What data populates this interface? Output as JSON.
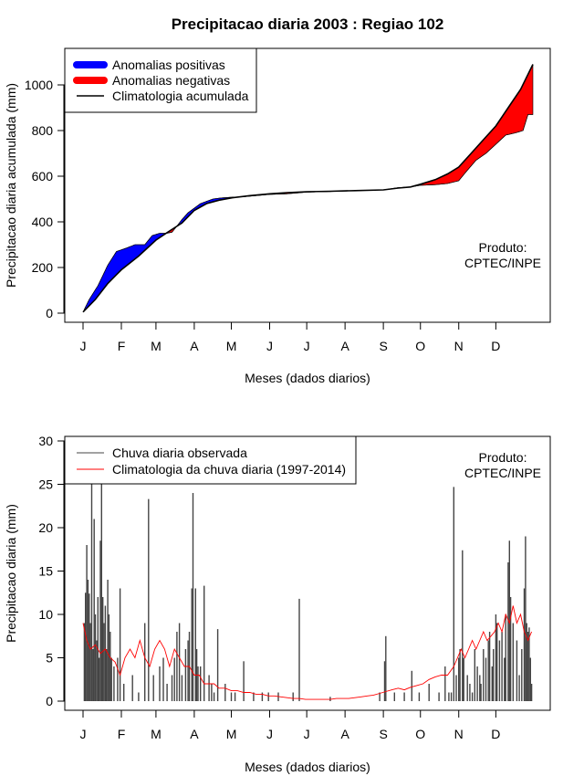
{
  "title": "Precipitacao diaria 2003 : Regiao 102",
  "chart_data": [
    {
      "type": "area",
      "name": "accumulated",
      "title": "Precipitacao diaria 2003 : Regiao 102",
      "xlabel": "Meses (dados diarios)",
      "ylabel": "Precipitacao diaria acumulada (mm)",
      "month_ticks": [
        "J",
        "F",
        "M",
        "A",
        "M",
        "J",
        "J",
        "A",
        "S",
        "O",
        "N",
        "D"
      ],
      "month_start_days": [
        0,
        31,
        59,
        90,
        120,
        151,
        181,
        212,
        243,
        273,
        304,
        334
      ],
      "yticks": [
        0,
        200,
        400,
        600,
        800,
        1000
      ],
      "ylim": [
        0,
        1100
      ],
      "xlim": [
        0,
        364
      ],
      "legend": [
        "Anomalias positivas",
        "Anomalias negativas",
        "Climatologia acumulada"
      ],
      "colors": {
        "positive": "#0000ff",
        "negative": "#ff0000",
        "climatology": "#000000"
      },
      "annotation": [
        "Produto:",
        "CPTEC/INPE"
      ],
      "observed_cumulative": [
        [
          0,
          5
        ],
        [
          5,
          60
        ],
        [
          12,
          120
        ],
        [
          20,
          210
        ],
        [
          27,
          270
        ],
        [
          35,
          285
        ],
        [
          42,
          300
        ],
        [
          50,
          300
        ],
        [
          56,
          340
        ],
        [
          62,
          350
        ],
        [
          68,
          350
        ],
        [
          72,
          355
        ],
        [
          75,
          375
        ],
        [
          80,
          410
        ],
        [
          85,
          440
        ],
        [
          90,
          460
        ],
        [
          95,
          480
        ],
        [
          100,
          490
        ],
        [
          105,
          500
        ],
        [
          112,
          505
        ],
        [
          120,
          508
        ],
        [
          130,
          510
        ],
        [
          140,
          515
        ],
        [
          151,
          520
        ],
        [
          165,
          523
        ],
        [
          181,
          530
        ],
        [
          200,
          533
        ],
        [
          220,
          536
        ],
        [
          243,
          540
        ],
        [
          255,
          550
        ],
        [
          265,
          553
        ],
        [
          273,
          560
        ],
        [
          285,
          563
        ],
        [
          295,
          568
        ],
        [
          304,
          580
        ],
        [
          310,
          620
        ],
        [
          318,
          670
        ],
        [
          326,
          700
        ],
        [
          334,
          740
        ],
        [
          342,
          780
        ],
        [
          350,
          790
        ],
        [
          356,
          800
        ],
        [
          360,
          870
        ],
        [
          364,
          870
        ]
      ],
      "climatology_cumulative": [
        [
          0,
          5
        ],
        [
          10,
          60
        ],
        [
          20,
          130
        ],
        [
          31,
          190
        ],
        [
          45,
          250
        ],
        [
          59,
          320
        ],
        [
          70,
          360
        ],
        [
          80,
          395
        ],
        [
          90,
          450
        ],
        [
          100,
          480
        ],
        [
          110,
          495
        ],
        [
          120,
          505
        ],
        [
          135,
          515
        ],
        [
          151,
          523
        ],
        [
          165,
          528
        ],
        [
          181,
          532
        ],
        [
          200,
          534
        ],
        [
          220,
          537
        ],
        [
          243,
          540
        ],
        [
          255,
          548
        ],
        [
          265,
          553
        ],
        [
          273,
          565
        ],
        [
          285,
          585
        ],
        [
          295,
          610
        ],
        [
          304,
          640
        ],
        [
          314,
          700
        ],
        [
          324,
          760
        ],
        [
          334,
          820
        ],
        [
          344,
          900
        ],
        [
          354,
          980
        ],
        [
          364,
          1090
        ]
      ]
    },
    {
      "type": "bar",
      "name": "daily",
      "xlabel": "Meses (dados diarios)",
      "ylabel": "Precipitacao diaria (mm)",
      "month_ticks": [
        "J",
        "F",
        "M",
        "A",
        "M",
        "J",
        "J",
        "A",
        "S",
        "O",
        "N",
        "D"
      ],
      "month_start_days": [
        0,
        31,
        59,
        90,
        120,
        151,
        181,
        212,
        243,
        273,
        304,
        334
      ],
      "yticks": [
        0,
        5,
        10,
        15,
        20,
        25,
        30
      ],
      "ylim": [
        0,
        30
      ],
      "xlim": [
        0,
        364
      ],
      "legend": [
        "Chuva diaria observada",
        "Climatologia da chuva diaria (1997-2014)"
      ],
      "colors": {
        "observed": "#444444",
        "climatology": "#ff0000"
      },
      "annotation": [
        "Produto:",
        "CPTEC/INPE"
      ],
      "observed_bars": [
        [
          1,
          9
        ],
        [
          2,
          12.5
        ],
        [
          3,
          18
        ],
        [
          4,
          14
        ],
        [
          5,
          12.4
        ],
        [
          6,
          9
        ],
        [
          7,
          25
        ],
        [
          8,
          6
        ],
        [
          9,
          21
        ],
        [
          10,
          10
        ],
        [
          11,
          7
        ],
        [
          12,
          12
        ],
        [
          13,
          5
        ],
        [
          14,
          18.5
        ],
        [
          15,
          25
        ],
        [
          16,
          12
        ],
        [
          17,
          9
        ],
        [
          18,
          11
        ],
        [
          19,
          6
        ],
        [
          20,
          14
        ],
        [
          21,
          10
        ],
        [
          22,
          8
        ],
        [
          23,
          5
        ],
        [
          25,
          4
        ],
        [
          28,
          5
        ],
        [
          30,
          13
        ],
        [
          33,
          2
        ],
        [
          40,
          3
        ],
        [
          45,
          1
        ],
        [
          50,
          9
        ],
        [
          53,
          23.3
        ],
        [
          57,
          3
        ],
        [
          62,
          4
        ],
        [
          65,
          5
        ],
        [
          68,
          2
        ],
        [
          72,
          3
        ],
        [
          74,
          5
        ],
        [
          76,
          8
        ],
        [
          78,
          9
        ],
        [
          80,
          3
        ],
        [
          83,
          6
        ],
        [
          85,
          7
        ],
        [
          86,
          8
        ],
        [
          88,
          13
        ],
        [
          89,
          24
        ],
        [
          91,
          13
        ],
        [
          92,
          6
        ],
        [
          93,
          4
        ],
        [
          95,
          4
        ],
        [
          98,
          13.3
        ],
        [
          102,
          3
        ],
        [
          104,
          2
        ],
        [
          106,
          1
        ],
        [
          109,
          8.3
        ],
        [
          115,
          2
        ],
        [
          120,
          1
        ],
        [
          123,
          1
        ],
        [
          130,
          4.6
        ],
        [
          138,
          1
        ],
        [
          145,
          1
        ],
        [
          150,
          1
        ],
        [
          158,
          1
        ],
        [
          170,
          1
        ],
        [
          175,
          11.8
        ],
        [
          200,
          0.5
        ],
        [
          240,
          1
        ],
        [
          244,
          4.6
        ],
        [
          245,
          7.5
        ],
        [
          252,
          1
        ],
        [
          260,
          1
        ],
        [
          266,
          3.5
        ],
        [
          272,
          1
        ],
        [
          280,
          2
        ],
        [
          288,
          1
        ],
        [
          293,
          4
        ],
        [
          296,
          1
        ],
        [
          298,
          1
        ],
        [
          300,
          24.7
        ],
        [
          302,
          3
        ],
        [
          304,
          5
        ],
        [
          305,
          6
        ],
        [
          307,
          17.4
        ],
        [
          308,
          5
        ],
        [
          311,
          3
        ],
        [
          313,
          2
        ],
        [
          315,
          1
        ],
        [
          317,
          6
        ],
        [
          319,
          4
        ],
        [
          321,
          3
        ],
        [
          322,
          2
        ],
        [
          324,
          6
        ],
        [
          326,
          5
        ],
        [
          328,
          7
        ],
        [
          329,
          8
        ],
        [
          331,
          4
        ],
        [
          332,
          6
        ],
        [
          334,
          10
        ],
        [
          335,
          9
        ],
        [
          337,
          7
        ],
        [
          339,
          8
        ],
        [
          341,
          5
        ],
        [
          342,
          10
        ],
        [
          344,
          16
        ],
        [
          345,
          18.5
        ],
        [
          346,
          12
        ],
        [
          348,
          9
        ],
        [
          351,
          7
        ],
        [
          353,
          3
        ],
        [
          355,
          6
        ],
        [
          357,
          13
        ],
        [
          358,
          19
        ],
        [
          359,
          9
        ],
        [
          360,
          8
        ],
        [
          361,
          8.5
        ],
        [
          362,
          5
        ],
        [
          363,
          2
        ]
      ],
      "climatology_line": [
        [
          0,
          9
        ],
        [
          3,
          7
        ],
        [
          6,
          6
        ],
        [
          10,
          6.5
        ],
        [
          14,
          5.5
        ],
        [
          18,
          6
        ],
        [
          22,
          5
        ],
        [
          26,
          4.5
        ],
        [
          30,
          3
        ],
        [
          34,
          5
        ],
        [
          38,
          6
        ],
        [
          42,
          5
        ],
        [
          46,
          7
        ],
        [
          50,
          5
        ],
        [
          54,
          4
        ],
        [
          58,
          6
        ],
        [
          62,
          7
        ],
        [
          66,
          6
        ],
        [
          70,
          4
        ],
        [
          74,
          6
        ],
        [
          78,
          5
        ],
        [
          82,
          4
        ],
        [
          86,
          4
        ],
        [
          90,
          3
        ],
        [
          94,
          3
        ],
        [
          98,
          2
        ],
        [
          102,
          2
        ],
        [
          106,
          2
        ],
        [
          110,
          1.5
        ],
        [
          115,
          1.5
        ],
        [
          120,
          1.2
        ],
        [
          125,
          1.2
        ],
        [
          130,
          1
        ],
        [
          135,
          1
        ],
        [
          140,
          0.8
        ],
        [
          145,
          0.8
        ],
        [
          150,
          0.6
        ],
        [
          155,
          0.6
        ],
        [
          160,
          0.5
        ],
        [
          165,
          0.4
        ],
        [
          170,
          0.3
        ],
        [
          175,
          0.3
        ],
        [
          180,
          0.2
        ],
        [
          185,
          0.2
        ],
        [
          190,
          0.2
        ],
        [
          195,
          0.2
        ],
        [
          200,
          0.2
        ],
        [
          205,
          0.3
        ],
        [
          210,
          0.3
        ],
        [
          215,
          0.3
        ],
        [
          220,
          0.4
        ],
        [
          225,
          0.5
        ],
        [
          230,
          0.6
        ],
        [
          235,
          0.7
        ],
        [
          240,
          0.9
        ],
        [
          245,
          1.1
        ],
        [
          250,
          1.3
        ],
        [
          255,
          1.5
        ],
        [
          260,
          1.3
        ],
        [
          265,
          1.6
        ],
        [
          270,
          1.8
        ],
        [
          275,
          2
        ],
        [
          280,
          2.5
        ],
        [
          285,
          2.8
        ],
        [
          290,
          3
        ],
        [
          295,
          3
        ],
        [
          300,
          4
        ],
        [
          303,
          5
        ],
        [
          306,
          6
        ],
        [
          309,
          5
        ],
        [
          312,
          6
        ],
        [
          315,
          7
        ],
        [
          318,
          6
        ],
        [
          321,
          7
        ],
        [
          324,
          8
        ],
        [
          327,
          7
        ],
        [
          330,
          7.5
        ],
        [
          333,
          8
        ],
        [
          336,
          9
        ],
        [
          339,
          8
        ],
        [
          342,
          10
        ],
        [
          345,
          9
        ],
        [
          348,
          11
        ],
        [
          351,
          9
        ],
        [
          354,
          10
        ],
        [
          357,
          8
        ],
        [
          360,
          7
        ],
        [
          363,
          8
        ]
      ]
    }
  ]
}
